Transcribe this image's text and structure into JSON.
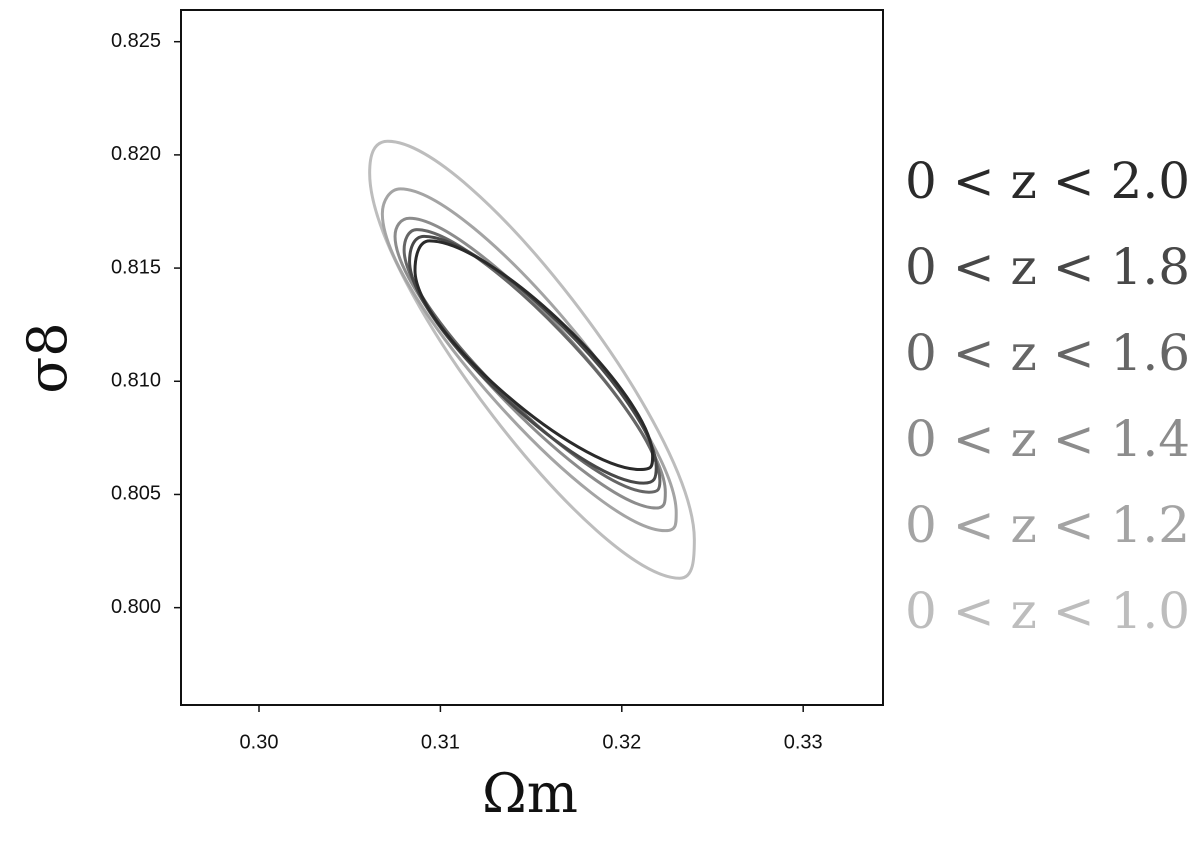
{
  "chart_data": {
    "type": "contour",
    "xlabel": "Ωm",
    "ylabel": "σ8",
    "xlim": [
      0.2957,
      0.3344
    ],
    "ylim": [
      0.7957,
      0.8264
    ],
    "xticks": [
      {
        "value": 0.3,
        "label": "0.30"
      },
      0.31,
      0.32,
      0.33
    ],
    "yticks": [
      {
        "value": 0.8,
        "label": "0.800"
      },
      0.805,
      {
        "value": 0.81,
        "label": "0.810"
      },
      0.815,
      {
        "value": 0.82,
        "label": "0.820"
      },
      0.825
    ],
    "series": [
      {
        "name": "0 < z < 2.0",
        "color": "#2a2a2a",
        "x": [
          0.3086,
          0.3094,
          0.3217,
          0.321
        ],
        "y": [
          0.8149,
          0.8162,
          0.8067,
          0.8061
        ]
      },
      {
        "name": "0 < z < 1.8",
        "color": "#484848",
        "x": [
          0.3083,
          0.3091,
          0.3219,
          0.3212
        ],
        "y": [
          0.8153,
          0.8164,
          0.8062,
          0.8055
        ]
      },
      {
        "name": "0 < z < 1.6",
        "color": "#666666",
        "x": [
          0.308,
          0.3087,
          0.3221,
          0.3215
        ],
        "y": [
          0.8158,
          0.8167,
          0.8056,
          0.8051
        ]
      },
      {
        "name": "0 < z < 1.4",
        "color": "#8c8c8c",
        "x": [
          0.3075,
          0.3083,
          0.3224,
          0.3219
        ],
        "y": [
          0.8164,
          0.8172,
          0.8051,
          0.8044
        ]
      },
      {
        "name": "0 < z < 1.2",
        "color": "#a4a4a4",
        "x": [
          0.3068,
          0.3078,
          0.323,
          0.3224
        ],
        "y": [
          0.8174,
          0.8185,
          0.8042,
          0.8034
        ]
      },
      {
        "name": "0 < z < 1.0",
        "color": "#bdbdbd",
        "x": [
          0.3061,
          0.3071,
          0.324,
          0.3232
        ],
        "y": [
          0.8192,
          0.8206,
          0.803,
          0.8013
        ]
      }
    ]
  }
}
